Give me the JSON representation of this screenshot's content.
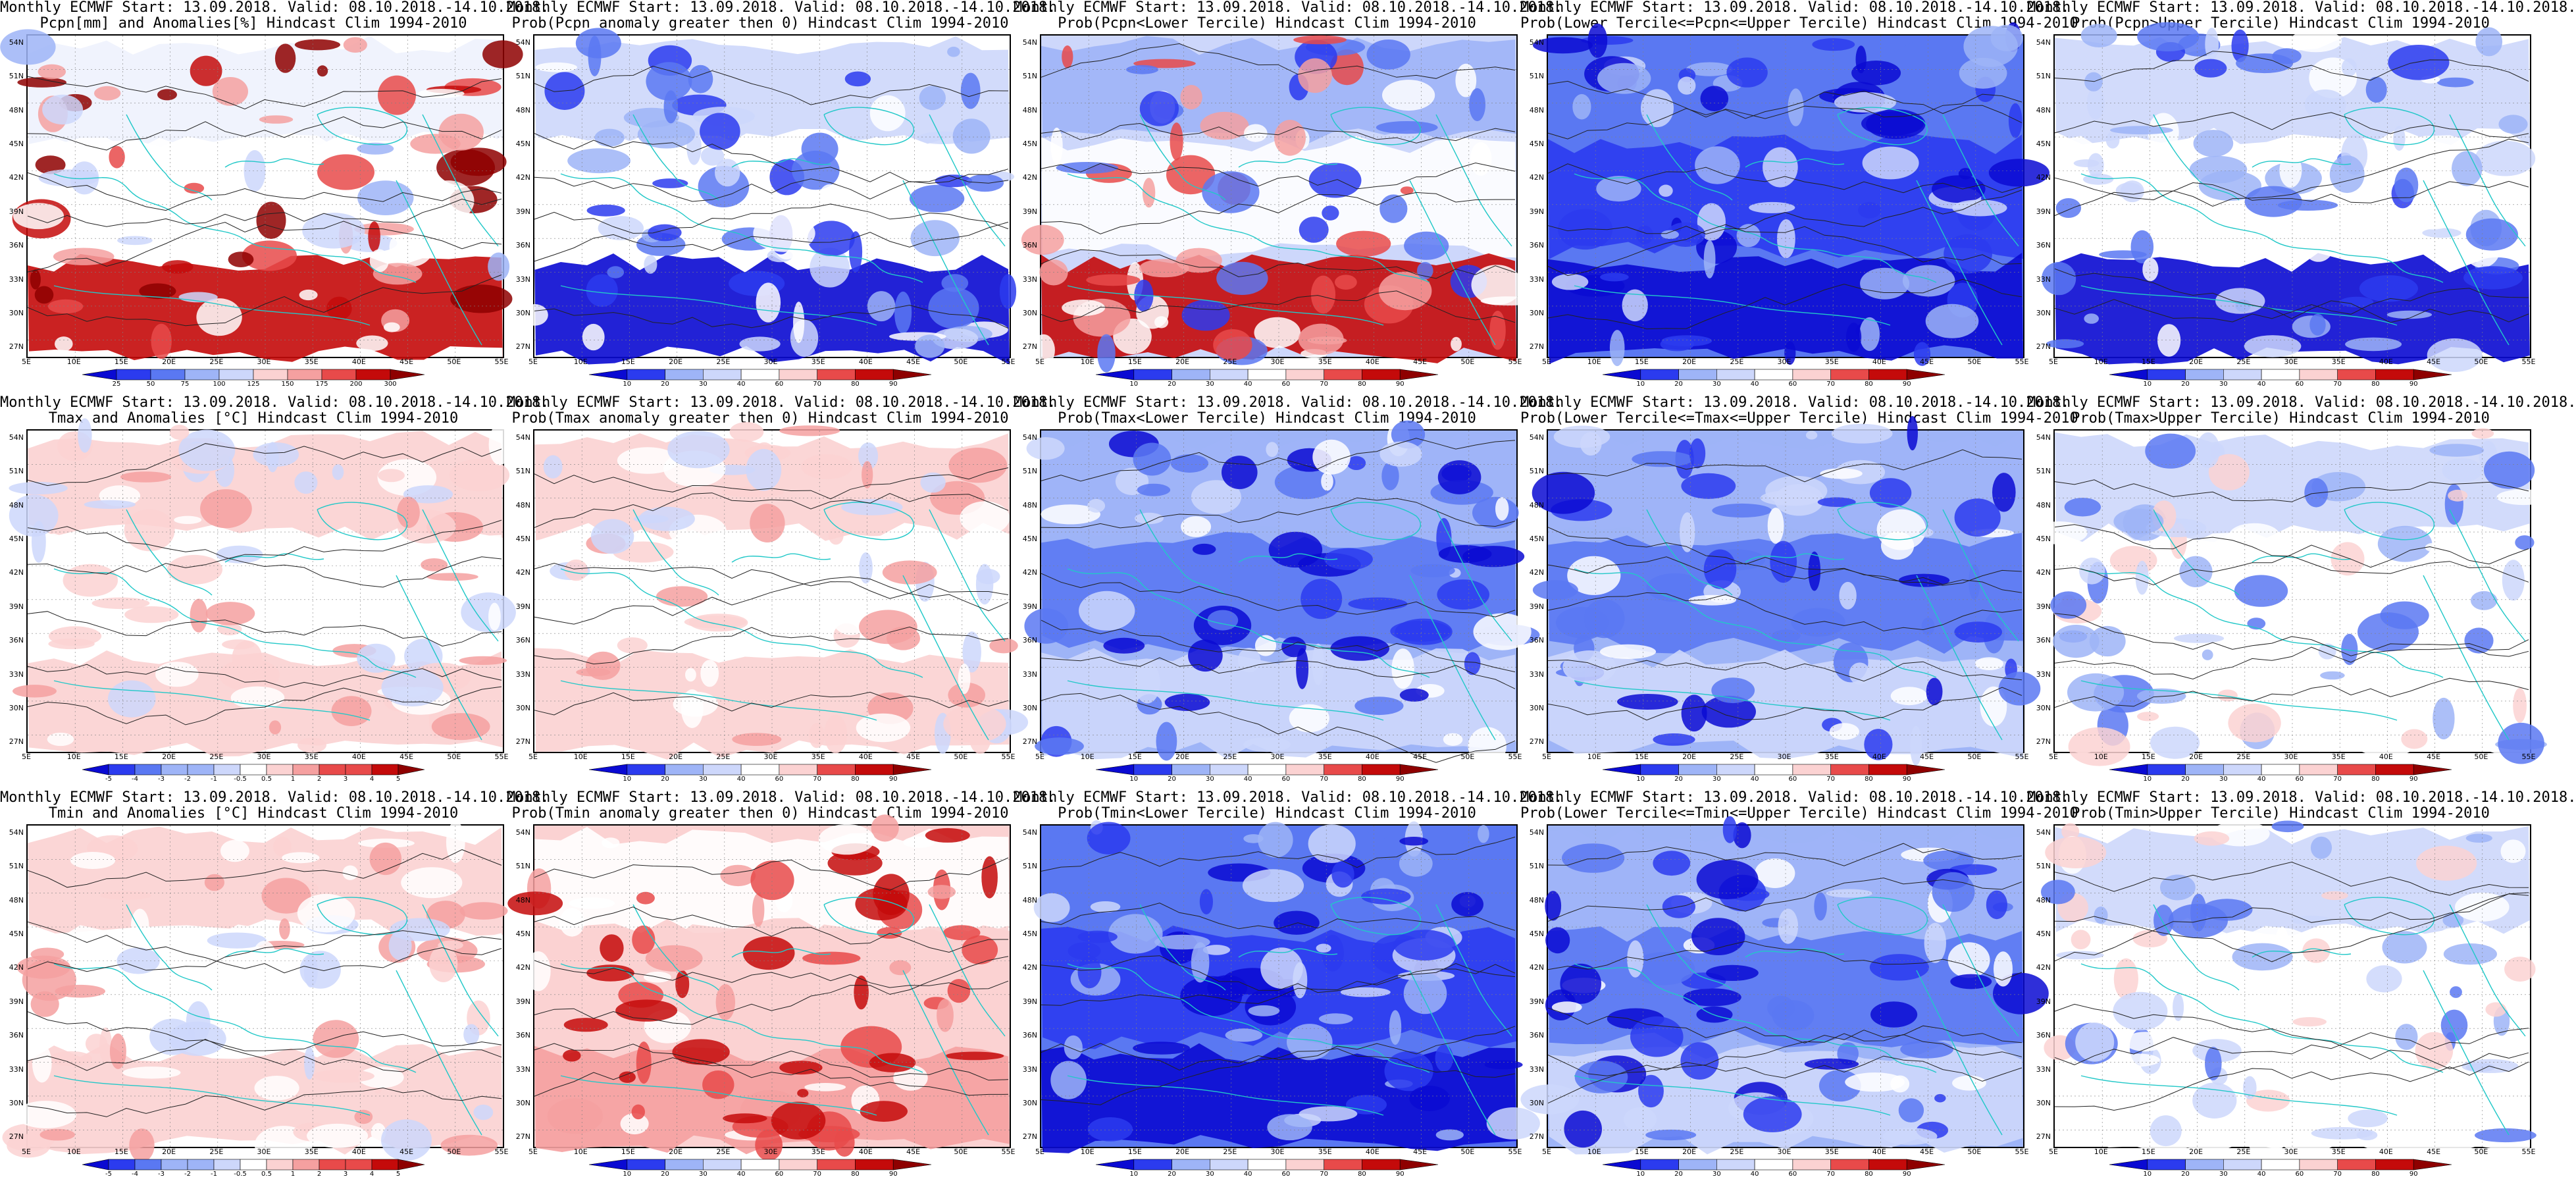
{
  "axes": {
    "y_ticks": [
      "54N",
      "51N",
      "48N",
      "45N",
      "42N",
      "39N",
      "36N",
      "33N",
      "30N",
      "27N"
    ],
    "x_ticks": [
      "5E",
      "10E",
      "15E",
      "20E",
      "25E",
      "30E",
      "35E",
      "40E",
      "45E",
      "50E",
      "55E"
    ]
  },
  "colorbars": {
    "pcpn_anom": [
      "25",
      "50",
      "75",
      "100",
      "125",
      "150",
      "175",
      "200",
      "300"
    ],
    "prob": [
      "10",
      "20",
      "30",
      "40",
      "60",
      "70",
      "80",
      "90"
    ],
    "temp_anom": [
      "-5",
      "-4",
      "-3",
      "-2",
      "-1",
      "-0.5",
      "0.5",
      "1",
      "2",
      "3",
      "4",
      "5"
    ]
  },
  "palettes": {
    "blue_red": [
      "#0a0ad2",
      "#2b3bef",
      "#5a78f2",
      "#9eb4f7",
      "#cdd7fb",
      "#ffffff",
      "#fbd2d2",
      "#f5a0a0",
      "#e84a4a",
      "#c40a0a",
      "#8e0000"
    ]
  },
  "panels": [
    {
      "title1": "Monthly ECMWF Start: 13.09.2018. Valid: 08.10.2018.-14.10.2018.",
      "title2": "Pcpn[mm] and Anomalies[%] Hindcast Clim 1994-2010",
      "cbar": "pcpn_anom",
      "style": "pcpn"
    },
    {
      "title1": "Monthly ECMWF Start: 13.09.2018. Valid: 08.10.2018.-14.10.2018.",
      "title2": "Prob(Pcpn anomaly greater then 0) Hindcast Clim 1994-2010",
      "cbar": "prob",
      "style": "blue_south"
    },
    {
      "title1": "Monthly ECMWF Start: 13.09.2018. Valid: 08.10.2018.-14.10.2018.",
      "title2": "Prob(Pcpn<Lower Tercile) Hindcast Clim 1994-2010",
      "cbar": "prob",
      "style": "red_south"
    },
    {
      "title1": "Monthly ECMWF Start: 13.09.2018. Valid: 08.10.2018.-14.10.2018.",
      "title2": "Prob(Lower Tercile<=Pcpn<=Upper Tercile) Hindcast Clim 1994-2010",
      "cbar": "prob",
      "style": "deep_blue"
    },
    {
      "title1": "Monthly ECMWF Start: 13.09.2018. Valid: 08.10.2018.-14.10.2018.",
      "title2": "Prob(Pcpn>Upper Tercile) Hindcast Clim 1994-2010",
      "cbar": "prob",
      "style": "blue_south"
    },
    {
      "title1": "Monthly ECMWF Start: 13.09.2018. Valid: 08.10.2018.-14.10.2018.",
      "title2": "Tmax and Anomalies [°C] Hindcast Clim 1994-2010",
      "cbar": "temp_anom",
      "style": "light_red"
    },
    {
      "title1": "Monthly ECMWF Start: 13.09.2018. Valid: 08.10.2018.-14.10.2018.",
      "title2": "Prob(Tmax anomaly greater then 0) Hindcast Clim 1994-2010",
      "cbar": "prob",
      "style": "light_red"
    },
    {
      "title1": "Monthly ECMWF Start: 13.09.2018. Valid: 08.10.2018.-14.10.2018.",
      "title2": "Prob(Tmax<Lower Tercile) Hindcast Clim 1994-2010",
      "cbar": "prob",
      "style": "mid_blue"
    },
    {
      "title1": "Monthly ECMWF Start: 13.09.2018. Valid: 08.10.2018.-14.10.2018.",
      "title2": "Prob(Lower Tercile<=Tmax<=Upper Tercile) Hindcast Clim 1994-2010",
      "cbar": "prob",
      "style": "mid_blue"
    },
    {
      "title1": "Monthly ECMWF Start: 13.09.2018. Valid: 08.10.2018.-14.10.2018.",
      "title2": "Prob(Tmax>Upper Tercile) Hindcast Clim 1994-2010",
      "cbar": "prob",
      "style": "pale_blue"
    },
    {
      "title1": "Monthly ECMWF Start: 13.09.2018. Valid: 08.10.2018.-14.10.2018.",
      "title2": "Tmin and Anomalies [°C] Hindcast Clim 1994-2010",
      "cbar": "temp_anom",
      "style": "light_red"
    },
    {
      "title1": "Monthly ECMWF Start: 13.09.2018. Valid: 08.10.2018.-14.10.2018.",
      "title2": "Prob(Tmin anomaly greater then 0) Hindcast Clim 1994-2010",
      "cbar": "prob",
      "style": "red_mid"
    },
    {
      "title1": "Monthly ECMWF Start: 13.09.2018. Valid: 08.10.2018.-14.10.2018.",
      "title2": "Prob(Tmin<Lower Tercile) Hindcast Clim 1994-2010",
      "cbar": "prob",
      "style": "deep_blue"
    },
    {
      "title1": "Monthly ECMWF Start: 13.09.2018. Valid: 08.10.2018.-14.10.2018.",
      "title2": "Prob(Lower Tercile<=Tmin<=Upper Tercile) Hindcast Clim 1994-2010",
      "cbar": "prob",
      "style": "mid_blue"
    },
    {
      "title1": "Monthly ECMWF Start: 13.09.2018. Valid: 08.10.2018.-14.10.2018.",
      "title2": "Prob(Tmin>Upper Tercile) Hindcast Clim 1994-2010",
      "cbar": "prob",
      "style": "pale_blue"
    }
  ]
}
